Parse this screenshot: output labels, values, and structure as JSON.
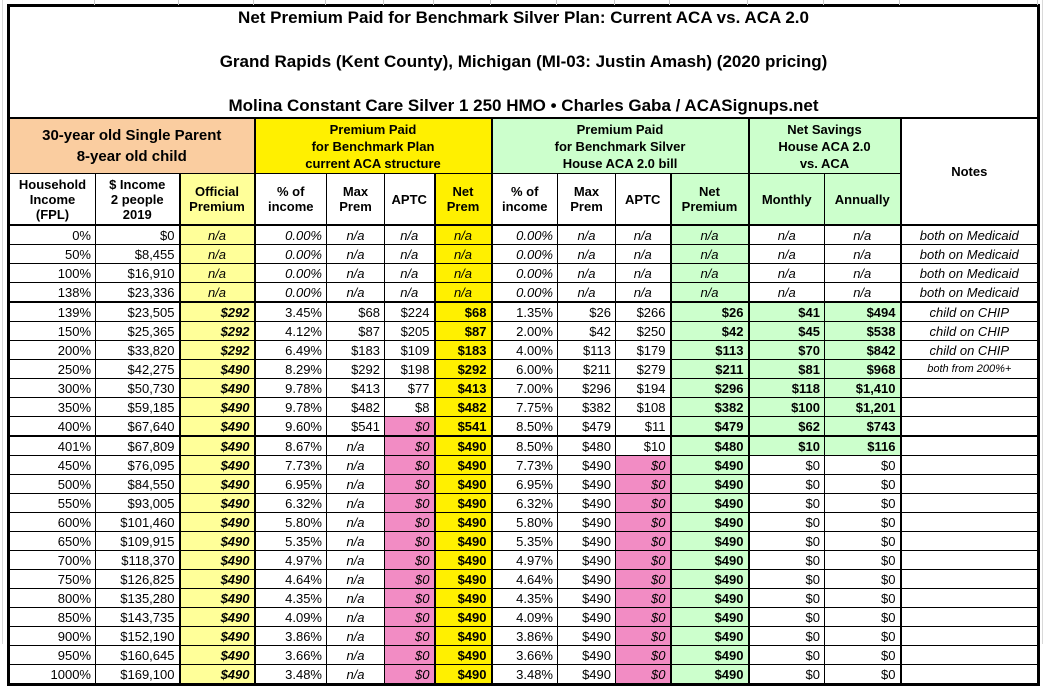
{
  "title": {
    "line1": "Net Premium Paid for Benchmark Silver Plan: Current ACA vs. ACA 2.0",
    "line2": "Grand Rapids (Kent County), Michigan (MI-03: Justin Amash) (2020 pricing)",
    "line3": "Molina Constant Care Silver 1 250 HMO • Charles Gaba / ACASignups.net"
  },
  "groups": {
    "person": "30-year old Single Parent\n8-year old child",
    "current_aca": "Premium Paid\nfor Benchmark Plan\ncurrent ACA structure",
    "house_aca20": "Premium Paid\nfor Benchmark Silver\nHouse ACA 2.0 bill",
    "net_savings": "Net Savings\nHouse ACA 2.0\nvs. ACA",
    "notes": "Notes"
  },
  "columns": {
    "fpl": "Household\nIncome\n(FPL)",
    "income": "$ Income\n2 people\n2019",
    "official": "Official\nPremium",
    "aca_pct": "% of\nincome",
    "aca_max": "Max\nPrem",
    "aca_aptc": "APTC",
    "aca_net": "Net\nPrem",
    "house_pct": "% of\nincome",
    "house_max": "Max\nPrem",
    "house_aptc": "APTC",
    "house_net": "Net\nPremium",
    "monthly": "Monthly",
    "annually": "Annually"
  },
  "colors": {
    "peach": "#FACDA0",
    "light_yellow": "#FFFF99",
    "bright_yellow": "#FFF000",
    "light_green": "#CCFFCC",
    "pink": "#F28CC4",
    "border": "#000000"
  },
  "table": {
    "section_break_rows": [
      4,
      11
    ],
    "notes_small": [
      "both from 200%+"
    ],
    "rows": [
      [
        "0%",
        "$0",
        "n/a",
        "0.00%",
        "n/a",
        "n/a",
        "n/a",
        "0.00%",
        "n/a",
        "n/a",
        "n/a",
        "n/a",
        "n/a",
        "both on Medicaid"
      ],
      [
        "50%",
        "$8,455",
        "n/a",
        "0.00%",
        "n/a",
        "n/a",
        "n/a",
        "0.00%",
        "n/a",
        "n/a",
        "n/a",
        "n/a",
        "n/a",
        "both on Medicaid"
      ],
      [
        "100%",
        "$16,910",
        "n/a",
        "0.00%",
        "n/a",
        "n/a",
        "n/a",
        "0.00%",
        "n/a",
        "n/a",
        "n/a",
        "n/a",
        "n/a",
        "both on Medicaid"
      ],
      [
        "138%",
        "$23,336",
        "n/a",
        "0.00%",
        "n/a",
        "n/a",
        "n/a",
        "0.00%",
        "n/a",
        "n/a",
        "n/a",
        "n/a",
        "n/a",
        "both on Medicaid"
      ],
      [
        "139%",
        "$23,505",
        "$292",
        "3.45%",
        "$68",
        "$224",
        "$68",
        "1.35%",
        "$26",
        "$266",
        "$26",
        "$41",
        "$494",
        "child on CHIP"
      ],
      [
        "150%",
        "$25,365",
        "$292",
        "4.12%",
        "$87",
        "$205",
        "$87",
        "2.00%",
        "$42",
        "$250",
        "$42",
        "$45",
        "$538",
        "child on CHIP"
      ],
      [
        "200%",
        "$33,820",
        "$292",
        "6.49%",
        "$183",
        "$109",
        "$183",
        "4.00%",
        "$113",
        "$179",
        "$113",
        "$70",
        "$842",
        "child on CHIP"
      ],
      [
        "250%",
        "$42,275",
        "$490",
        "8.29%",
        "$292",
        "$198",
        "$292",
        "6.00%",
        "$211",
        "$279",
        "$211",
        "$81",
        "$968",
        "both from 200%+"
      ],
      [
        "300%",
        "$50,730",
        "$490",
        "9.78%",
        "$413",
        "$77",
        "$413",
        "7.00%",
        "$296",
        "$194",
        "$296",
        "$118",
        "$1,410",
        ""
      ],
      [
        "350%",
        "$59,185",
        "$490",
        "9.78%",
        "$482",
        "$8",
        "$482",
        "7.75%",
        "$382",
        "$108",
        "$382",
        "$100",
        "$1,201",
        ""
      ],
      [
        "400%",
        "$67,640",
        "$490",
        "9.60%",
        "$541",
        "$0",
        "$541",
        "8.50%",
        "$479",
        "$11",
        "$479",
        "$62",
        "$743",
        ""
      ],
      [
        "401%",
        "$67,809",
        "$490",
        "8.67%",
        "n/a",
        "$0",
        "$490",
        "8.50%",
        "$480",
        "$10",
        "$480",
        "$10",
        "$116",
        ""
      ],
      [
        "450%",
        "$76,095",
        "$490",
        "7.73%",
        "n/a",
        "$0",
        "$490",
        "7.73%",
        "$490",
        "$0",
        "$490",
        "$0",
        "$0",
        ""
      ],
      [
        "500%",
        "$84,550",
        "$490",
        "6.95%",
        "n/a",
        "$0",
        "$490",
        "6.95%",
        "$490",
        "$0",
        "$490",
        "$0",
        "$0",
        ""
      ],
      [
        "550%",
        "$93,005",
        "$490",
        "6.32%",
        "n/a",
        "$0",
        "$490",
        "6.32%",
        "$490",
        "$0",
        "$490",
        "$0",
        "$0",
        ""
      ],
      [
        "600%",
        "$101,460",
        "$490",
        "5.80%",
        "n/a",
        "$0",
        "$490",
        "5.80%",
        "$490",
        "$0",
        "$490",
        "$0",
        "$0",
        ""
      ],
      [
        "650%",
        "$109,915",
        "$490",
        "5.35%",
        "n/a",
        "$0",
        "$490",
        "5.35%",
        "$490",
        "$0",
        "$490",
        "$0",
        "$0",
        ""
      ],
      [
        "700%",
        "$118,370",
        "$490",
        "4.97%",
        "n/a",
        "$0",
        "$490",
        "4.97%",
        "$490",
        "$0",
        "$490",
        "$0",
        "$0",
        ""
      ],
      [
        "750%",
        "$126,825",
        "$490",
        "4.64%",
        "n/a",
        "$0",
        "$490",
        "4.64%",
        "$490",
        "$0",
        "$490",
        "$0",
        "$0",
        ""
      ],
      [
        "800%",
        "$135,280",
        "$490",
        "4.35%",
        "n/a",
        "$0",
        "$490",
        "4.35%",
        "$490",
        "$0",
        "$490",
        "$0",
        "$0",
        ""
      ],
      [
        "850%",
        "$143,735",
        "$490",
        "4.09%",
        "n/a",
        "$0",
        "$490",
        "4.09%",
        "$490",
        "$0",
        "$490",
        "$0",
        "$0",
        ""
      ],
      [
        "900%",
        "$152,190",
        "$490",
        "3.86%",
        "n/a",
        "$0",
        "$490",
        "3.86%",
        "$490",
        "$0",
        "$490",
        "$0",
        "$0",
        ""
      ],
      [
        "950%",
        "$160,645",
        "$490",
        "3.66%",
        "n/a",
        "$0",
        "$490",
        "3.66%",
        "$490",
        "$0",
        "$490",
        "$0",
        "$0",
        ""
      ],
      [
        "1000%",
        "$169,100",
        "$490",
        "3.48%",
        "n/a",
        "$0",
        "$490",
        "3.48%",
        "$490",
        "$0",
        "$490",
        "$0",
        "$0",
        ""
      ]
    ]
  }
}
